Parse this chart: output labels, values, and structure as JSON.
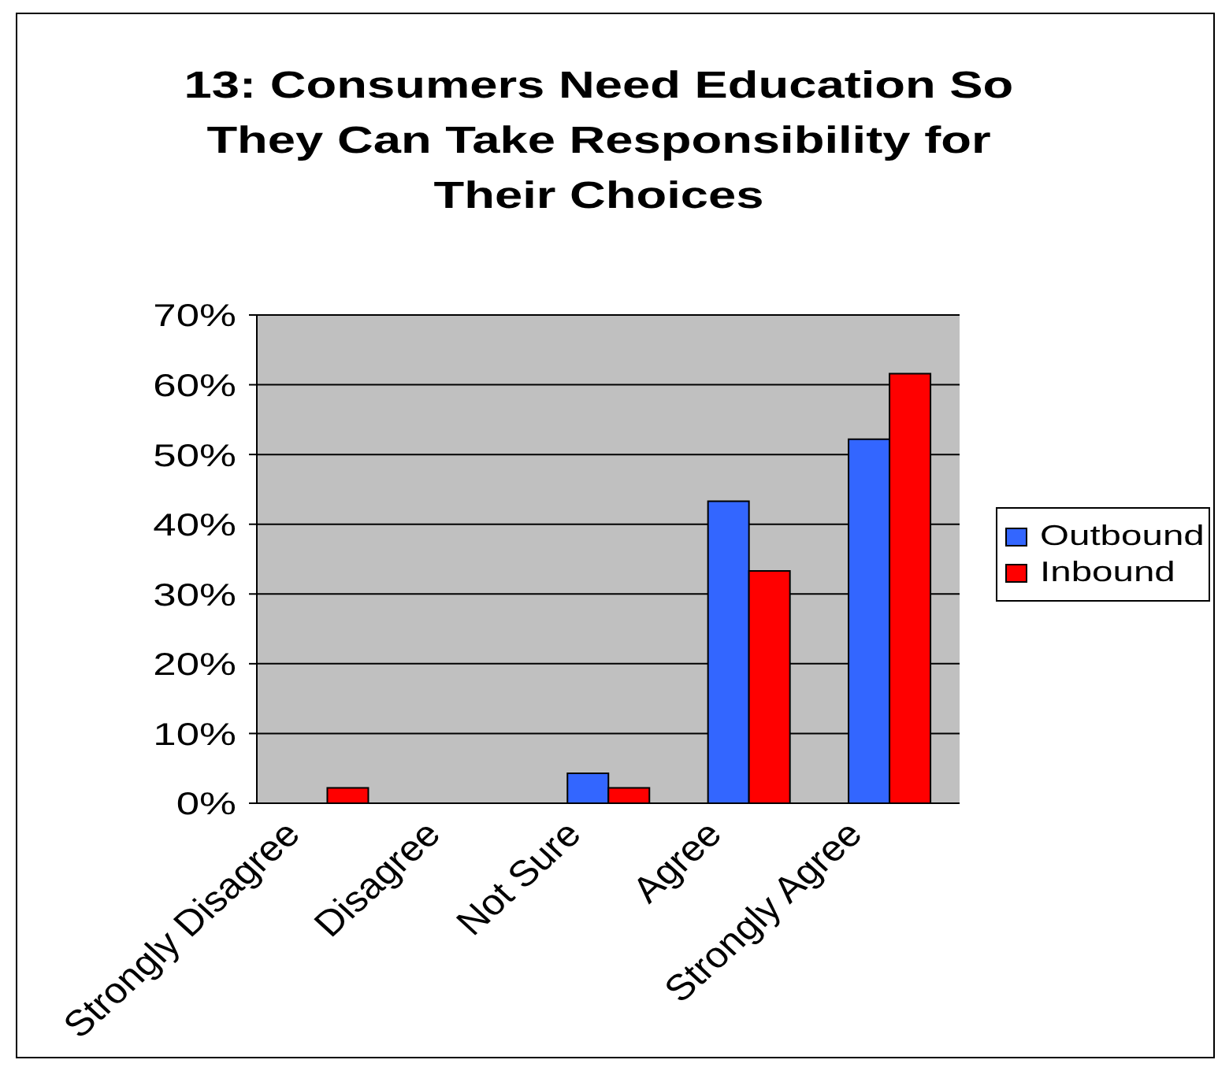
{
  "chart_data": {
    "type": "bar",
    "title": "13: Consumers Need Education So They Can Take Responsibility for Their Choices",
    "categories": [
      "Strongly Disagree",
      "Disagree",
      "Not Sure",
      "Agree",
      "Strongly Agree"
    ],
    "series": [
      {
        "name": "Outbound",
        "color": "#3366ff",
        "values": [
          0,
          0,
          4.3,
          43.3,
          52.2
        ]
      },
      {
        "name": "Inbound",
        "color": "#ff0000",
        "values": [
          2.2,
          0,
          2.2,
          33.3,
          61.6
        ]
      }
    ],
    "ylim": [
      0,
      70
    ],
    "yticks": [
      {
        "value": 0,
        "label": "0%"
      },
      {
        "value": 10,
        "label": "10%"
      },
      {
        "value": 20,
        "label": "20%"
      },
      {
        "value": 30,
        "label": "30%"
      },
      {
        "value": 40,
        "label": "40%"
      },
      {
        "value": 50,
        "label": "50%"
      },
      {
        "value": 60,
        "label": "60%"
      },
      {
        "value": 70,
        "label": "70%"
      }
    ],
    "grid": "y",
    "legend": "right"
  }
}
